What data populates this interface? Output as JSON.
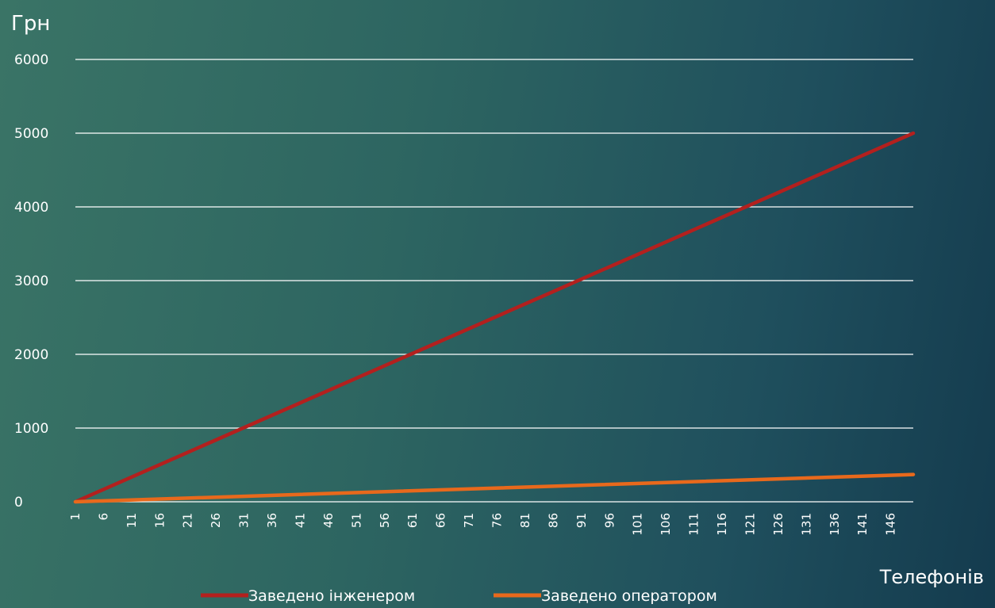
{
  "chart_data": {
    "type": "line",
    "ylabel": "Грн",
    "xlabel": "Телефонів",
    "ylim": [
      0,
      6000
    ],
    "yticks": [
      0,
      1000,
      2000,
      3000,
      4000,
      5000,
      6000
    ],
    "xlim": [
      1,
      150
    ],
    "xticks": [
      "1",
      "6",
      "11",
      "16",
      "21",
      "26",
      "31",
      "36",
      "41",
      "46",
      "51",
      "56",
      "61",
      "66",
      "71",
      "76",
      "81",
      "86",
      "91",
      "96",
      "101",
      "106",
      "111",
      "116",
      "121",
      "126",
      "131",
      "136",
      "141",
      "146"
    ],
    "grid": true,
    "legend_position": "bottom",
    "series": [
      {
        "name": "Заведено інженером",
        "color": "#b3201e",
        "x": [
          1,
          150
        ],
        "y": [
          0,
          5000
        ]
      },
      {
        "name": "Заведено оператором",
        "color": "#e8691c",
        "x": [
          1,
          150
        ],
        "y": [
          0,
          370
        ]
      }
    ]
  }
}
